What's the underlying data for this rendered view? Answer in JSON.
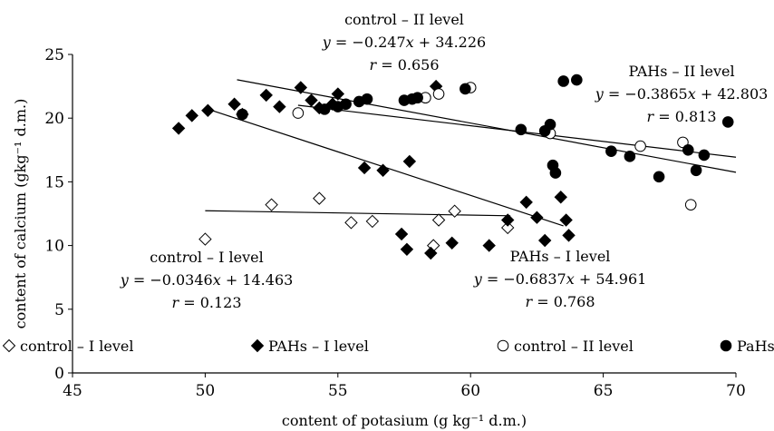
{
  "chart_data": {
    "type": "scatter",
    "title": "",
    "xlabel": "content of potasium (g kg⁻¹ d.m.)",
    "ylabel": "content of calcium (gkg⁻¹ d.m.)",
    "xlim": [
      45,
      70
    ],
    "ylim": [
      0,
      25
    ],
    "xticks": [
      45,
      50,
      55,
      60,
      65,
      70
    ],
    "yticks": [
      0,
      5,
      10,
      15,
      20,
      25
    ],
    "grid": false,
    "legend_position": "bottom",
    "series": [
      {
        "name": "control – I level",
        "marker": "diamond-open",
        "points": [
          [
            50,
            10.5
          ],
          [
            52.5,
            13.2
          ],
          [
            54.3,
            13.7
          ],
          [
            55.5,
            11.8
          ],
          [
            56.3,
            11.9
          ],
          [
            58.6,
            10.0
          ],
          [
            58.8,
            12.0
          ],
          [
            59.4,
            12.7
          ],
          [
            61.4,
            11.4
          ]
        ],
        "trend": {
          "slope": -0.0346,
          "intercept": 14.463,
          "x_range": [
            50,
            61.5
          ]
        }
      },
      {
        "name": "PAHs – I level",
        "marker": "diamond-filled",
        "points": [
          [
            49.0,
            19.2
          ],
          [
            49.5,
            20.2
          ],
          [
            50.1,
            20.6
          ],
          [
            51.1,
            21.1
          ],
          [
            51.4,
            20.3
          ],
          [
            52.3,
            21.8
          ],
          [
            52.8,
            20.9
          ],
          [
            53.6,
            22.4
          ],
          [
            54.0,
            21.4
          ],
          [
            54.3,
            20.8
          ],
          [
            54.8,
            21.1
          ],
          [
            55.0,
            21.9
          ],
          [
            56.0,
            16.1
          ],
          [
            56.7,
            15.9
          ],
          [
            57.4,
            10.9
          ],
          [
            57.6,
            9.7
          ],
          [
            57.7,
            16.6
          ],
          [
            58.5,
            9.4
          ],
          [
            58.7,
            22.5
          ],
          [
            59.3,
            10.2
          ],
          [
            60.7,
            10.0
          ],
          [
            61.4,
            12.0
          ],
          [
            62.1,
            13.4
          ],
          [
            62.5,
            12.2
          ],
          [
            62.8,
            10.4
          ],
          [
            63.4,
            13.8
          ],
          [
            63.6,
            12.0
          ],
          [
            63.7,
            10.8
          ]
        ],
        "trend": {
          "slope": -0.6837,
          "intercept": 54.961,
          "x_range": [
            50,
            63.5
          ]
        }
      },
      {
        "name": "control – II level",
        "marker": "circle-open",
        "points": [
          [
            53.5,
            20.4
          ],
          [
            58.3,
            21.6
          ],
          [
            58.8,
            21.9
          ],
          [
            60.0,
            22.4
          ],
          [
            63.0,
            18.8
          ],
          [
            66.4,
            17.8
          ],
          [
            68.0,
            18.1
          ],
          [
            68.3,
            13.2
          ]
        ],
        "trend": {
          "slope": -0.247,
          "intercept": 34.226,
          "x_range": [
            53.5,
            70
          ]
        }
      },
      {
        "name": "PaHs – II level",
        "marker": "circle-filled",
        "points": [
          [
            51.4,
            20.3
          ],
          [
            54.5,
            20.7
          ],
          [
            55.0,
            20.9
          ],
          [
            55.3,
            21.1
          ],
          [
            55.8,
            21.3
          ],
          [
            56.1,
            21.5
          ],
          [
            57.5,
            21.4
          ],
          [
            57.8,
            21.5
          ],
          [
            58.0,
            21.6
          ],
          [
            59.8,
            22.3
          ],
          [
            61.9,
            19.1
          ],
          [
            62.8,
            19.0
          ],
          [
            63.0,
            19.5
          ],
          [
            63.1,
            16.3
          ],
          [
            63.2,
            15.7
          ],
          [
            63.5,
            22.9
          ],
          [
            64.0,
            23.0
          ],
          [
            65.3,
            17.4
          ],
          [
            66.0,
            17.0
          ],
          [
            67.1,
            15.4
          ],
          [
            68.2,
            17.5
          ],
          [
            68.5,
            15.9
          ],
          [
            68.8,
            17.1
          ],
          [
            69.7,
            19.7
          ]
        ],
        "trend": {
          "slope": -0.3865,
          "intercept": 42.803,
          "x_range": [
            51.2,
            70
          ]
        }
      }
    ],
    "annotations": [
      {
        "id": "ctrl2",
        "lines": [
          "control – II level",
          "y = −0.247x + 34.226",
          "r = 0.656"
        ]
      },
      {
        "id": "pahs2",
        "lines": [
          "PAHs – II level",
          "y = −0.3865x + 42.803",
          "r = 0.813"
        ]
      },
      {
        "id": "ctrl1",
        "lines": [
          "control – I level",
          "y = −0.0346x + 14.463",
          "r = 0.123"
        ]
      },
      {
        "id": "pahs1",
        "lines": [
          "PAHs – I level",
          "y = −0.6837x + 54.961",
          "r = 0.768"
        ]
      }
    ]
  }
}
